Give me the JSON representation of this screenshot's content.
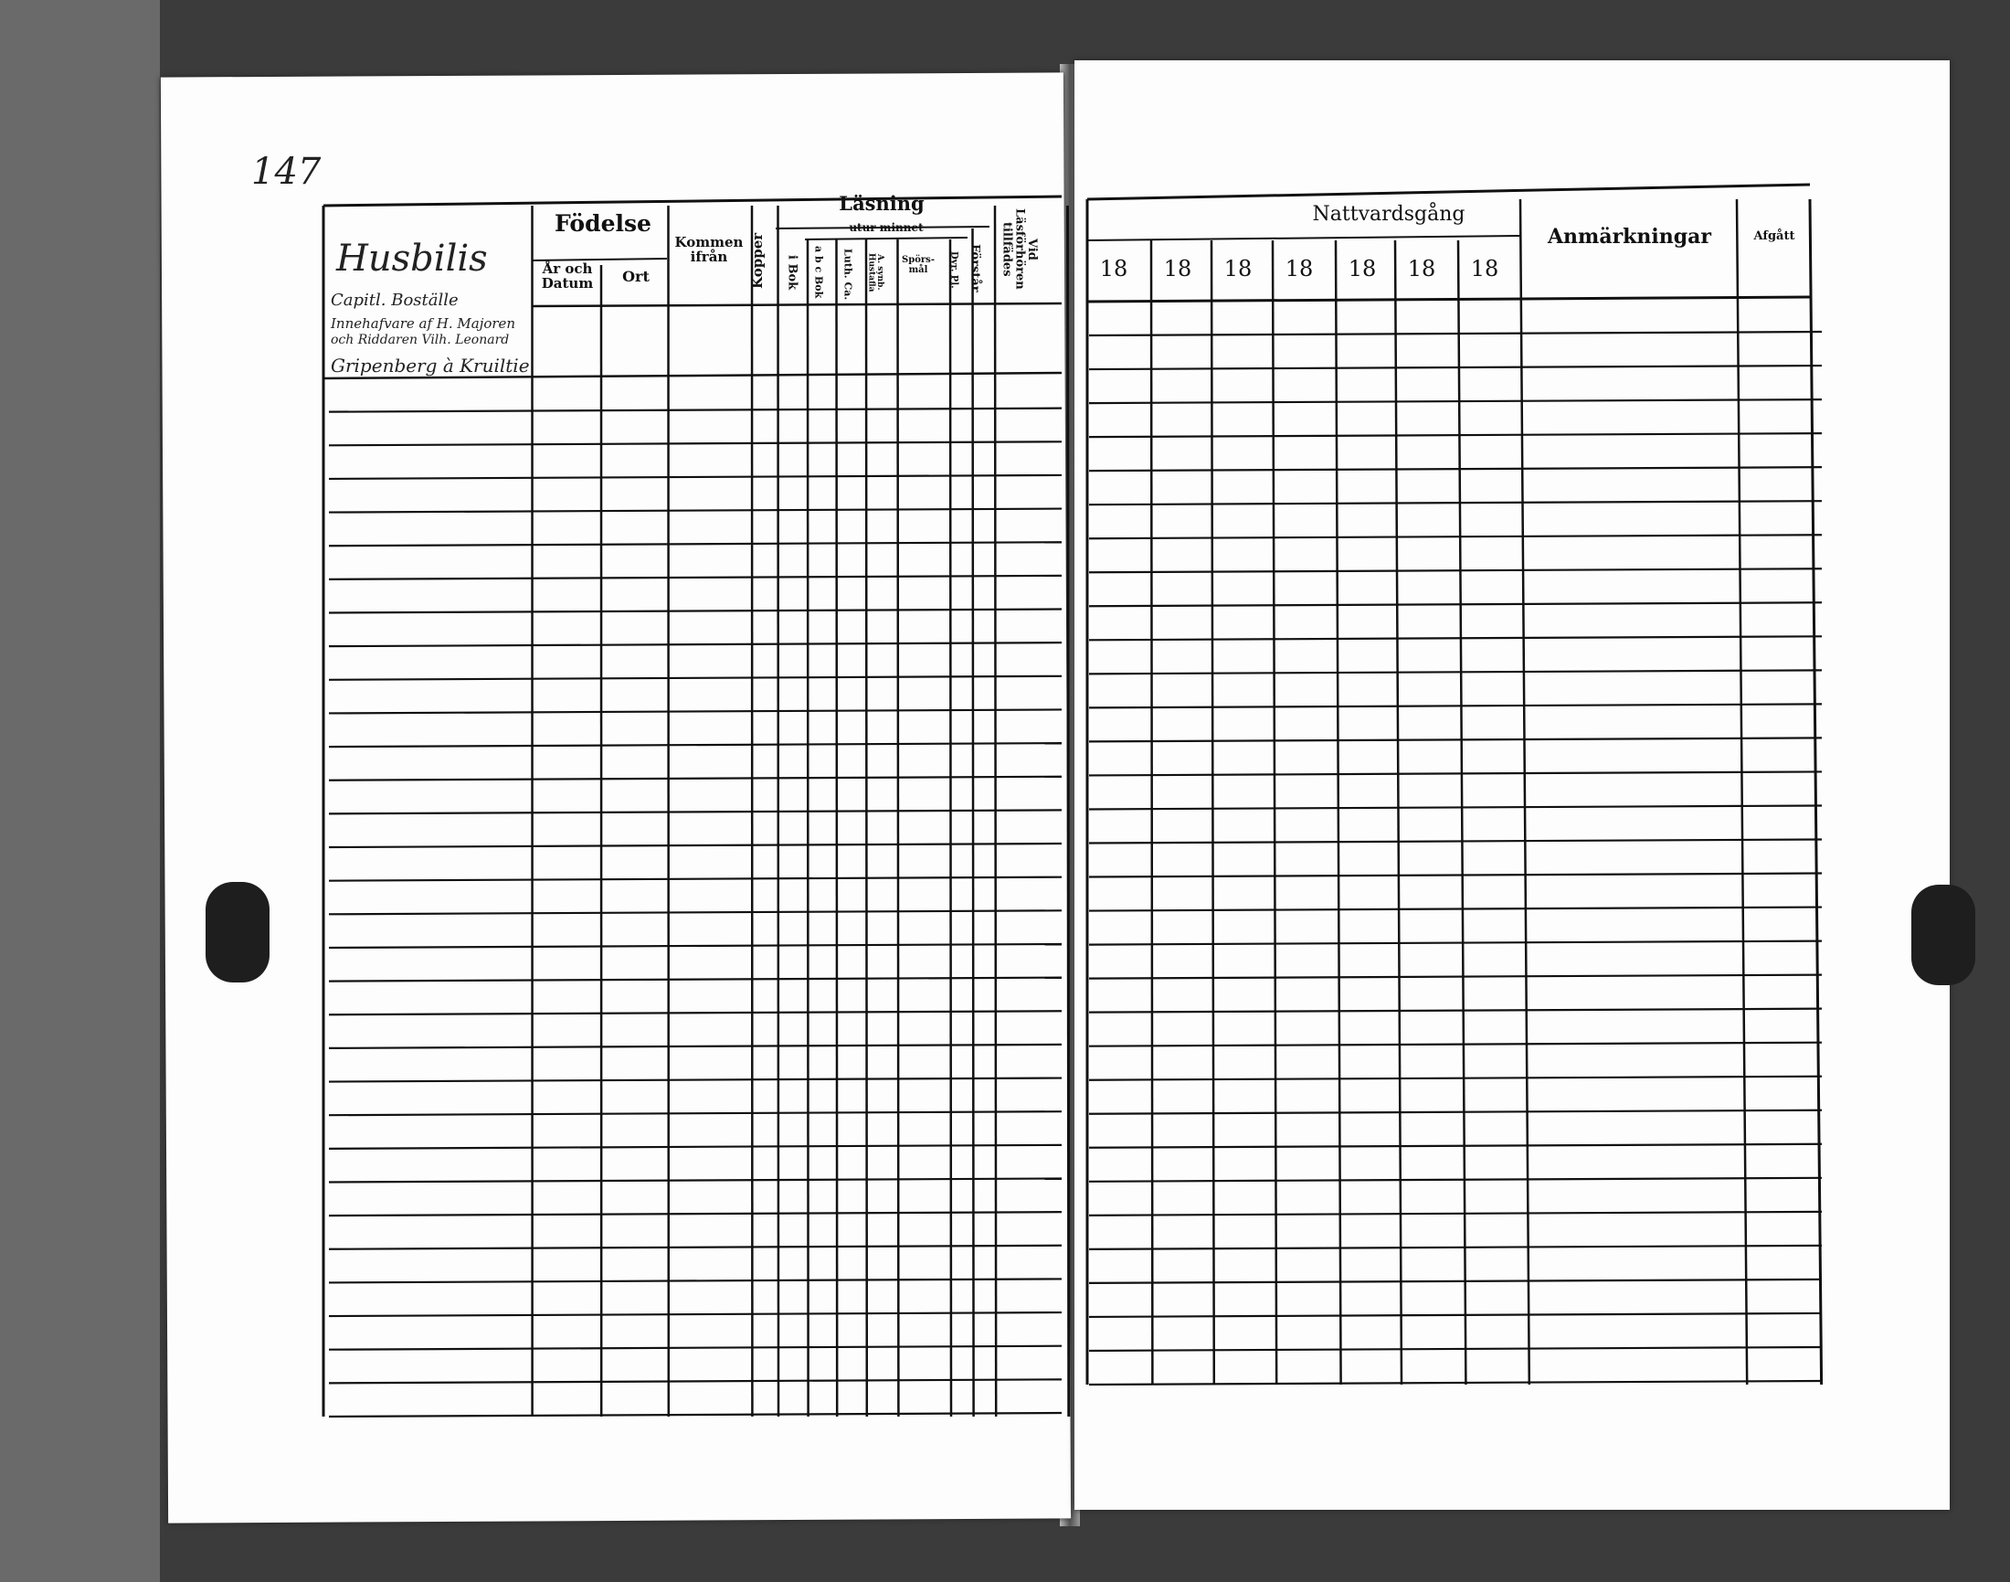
{
  "page_number": "147",
  "handwriting": {
    "title": "Husbilis",
    "line1": "Capitl. Boställe",
    "line2": "Innehafvare af H. Majoren",
    "line3": "och Riddaren Vilh. Leonard",
    "line4": "Gripenberg à Kruiltie"
  },
  "left_headers": {
    "fodelse": "Födelse",
    "ar_och_datum": "År och Datum",
    "ort": "Ort",
    "kommen_ifran": "Kommen ifrån",
    "kopper": "Kopper",
    "lasning": "Läsning",
    "utur_minnet": "utur minnet",
    "i_bok": "i Bok",
    "abc_bok": "a b c Bok",
    "luth_ca": "Luth. Ca.",
    "a_synb_husta": "A. synb. Hustafla",
    "sporsmal": "Spörs-mål",
    "dyr_pl": "Dyr. Pl.",
    "forstar": "Förstår",
    "vid_lasforhoren": "Vid Läsförhören tillfädes"
  },
  "right_headers": {
    "nattvardsgang": "Nattvardsgång",
    "years": [
      "18",
      "18",
      "18",
      "18",
      "18",
      "18",
      "18"
    ],
    "anmarkningar": "Anmärkningar",
    "afgatt": "Afgått"
  },
  "colors": {
    "background": "#3b3b3b",
    "paper": "#fdfdfd",
    "ink": "#111111"
  }
}
